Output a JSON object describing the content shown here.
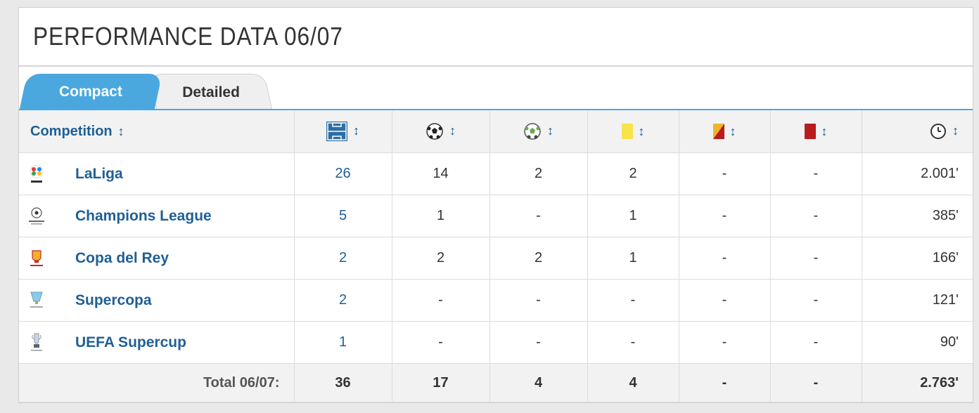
{
  "page": {
    "title": "PERFORMANCE DATA 06/07"
  },
  "tabs": [
    {
      "label": "Compact",
      "active": true
    },
    {
      "label": "Detailed",
      "active": false
    }
  ],
  "table": {
    "headers": {
      "competition": "Competition",
      "sort_symbol": "↕",
      "icons": [
        "pitch-appearances-icon",
        "ball-goals-icon",
        "ball-assists-icon",
        "yellow-card-icon",
        "yellow-red-card-icon",
        "red-card-icon",
        "clock-minutes-icon"
      ]
    },
    "rows": [
      {
        "competition": "LaLiga",
        "appearances": "26",
        "goals": "14",
        "assists": "2",
        "yellow": "2",
        "yellow_red": "-",
        "red": "-",
        "minutes": "2.001'"
      },
      {
        "competition": "Champions League",
        "appearances": "5",
        "goals": "1",
        "assists": "-",
        "yellow": "1",
        "yellow_red": "-",
        "red": "-",
        "minutes": "385'"
      },
      {
        "competition": "Copa del Rey",
        "appearances": "2",
        "goals": "2",
        "assists": "2",
        "yellow": "1",
        "yellow_red": "-",
        "red": "-",
        "minutes": "166'"
      },
      {
        "competition": "Supercopa",
        "appearances": "2",
        "goals": "-",
        "assists": "-",
        "yellow": "-",
        "yellow_red": "-",
        "red": "-",
        "minutes": "121'"
      },
      {
        "competition": "UEFA Supercup",
        "appearances": "1",
        "goals": "-",
        "assists": "-",
        "yellow": "-",
        "yellow_red": "-",
        "red": "-",
        "minutes": "90'"
      }
    ],
    "total": {
      "label": "Total 06/07:",
      "appearances": "36",
      "goals": "17",
      "assists": "4",
      "yellow": "4",
      "yellow_red": "-",
      "red": "-",
      "minutes": "2.763'"
    }
  },
  "colors": {
    "accent": "#4aa8df",
    "link": "#1f5f95",
    "yellow_card": "#f7e34a",
    "red_card": "#b91c1c"
  }
}
